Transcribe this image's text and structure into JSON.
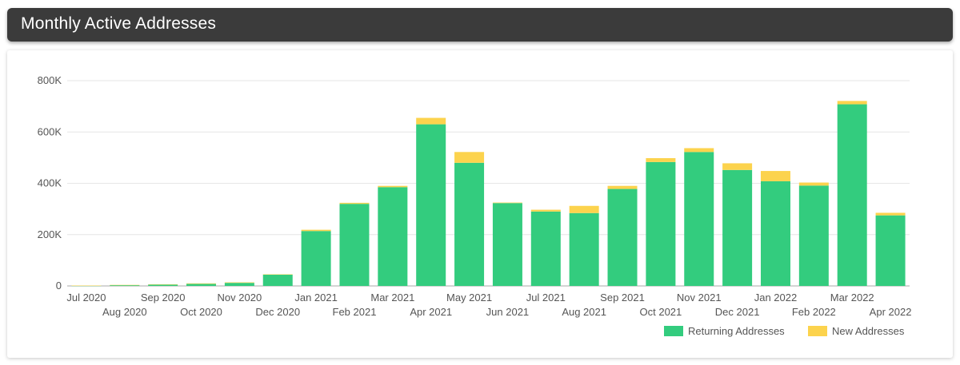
{
  "header": {
    "title": "Monthly Active Addresses"
  },
  "colors": {
    "returning": "#33cc7e",
    "new": "#fcd34d",
    "grid": "#e6e6e6",
    "axis": "#aaaaaa"
  },
  "chart_data": {
    "type": "bar",
    "stacked": true,
    "title": "",
    "xlabel": "",
    "ylabel": "",
    "ylim": [
      0,
      800000
    ],
    "y_ticks": [
      0,
      200000,
      400000,
      600000,
      800000
    ],
    "y_tick_labels": [
      "0",
      "200K",
      "400K",
      "600K",
      "800K"
    ],
    "grid": true,
    "legend": "bottom-right",
    "categories": [
      "Jul 2020",
      "Aug 2020",
      "Sep 2020",
      "Oct 2020",
      "Nov 2020",
      "Dec 2020",
      "Jan 2021",
      "Feb 2021",
      "Mar 2021",
      "Apr 2021",
      "May 2021",
      "Jun 2021",
      "Jul 2021",
      "Aug 2021",
      "Sep 2021",
      "Oct 2021",
      "Nov 2021",
      "Dec 2021",
      "Jan 2022",
      "Feb 2022",
      "Mar 2022",
      "Apr 2022"
    ],
    "series": [
      {
        "name": "Returning Addresses",
        "values": [
          1000,
          3000,
          5000,
          8000,
          12000,
          44000,
          214000,
          320000,
          385000,
          630000,
          480000,
          323000,
          290000,
          284000,
          378000,
          483000,
          522000,
          452000,
          408000,
          391000,
          708000,
          275000
        ]
      },
      {
        "name": "New Addresses",
        "values": [
          500,
          1000,
          1500,
          2000,
          2000,
          1500,
          5000,
          4000,
          5000,
          25000,
          42000,
          2000,
          7000,
          28000,
          12000,
          15000,
          15000,
          26000,
          40000,
          12000,
          13000,
          10000
        ]
      }
    ]
  }
}
